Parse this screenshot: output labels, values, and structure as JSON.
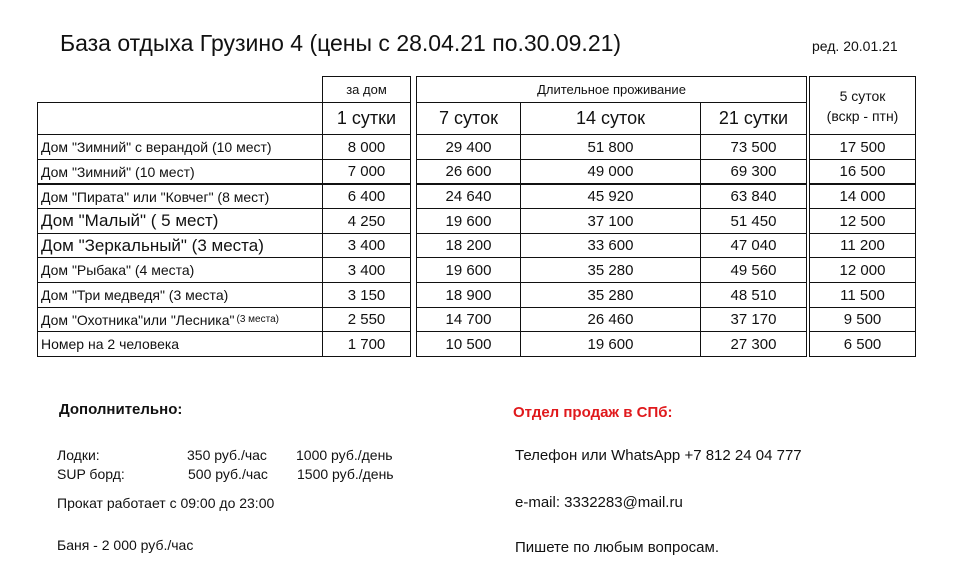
{
  "header": {
    "title": "База отдыха Грузино 4 (цены с 28.04.21 по.30.09.21)",
    "edition": "ред. 20.01.21"
  },
  "table": {
    "per_house_label": "за дом",
    "long_stay_label": "Длительное проживание",
    "columns": [
      "1 сутки",
      "7 суток",
      "14 суток",
      "21 сутки"
    ],
    "weekday_col": {
      "line1": "5 суток",
      "line2": "(вскр - птн)"
    },
    "rows": [
      {
        "name": "Дом \"Зимний\" с верандой (10 мест)",
        "note": "",
        "prices": [
          "8 000",
          "29 400",
          "51 800",
          "73 500",
          "17 500"
        ]
      },
      {
        "name": "Дом \"Зимний\" (10 мест)",
        "note": "",
        "prices": [
          "7 000",
          "26 600",
          "49 000",
          "69 300",
          "16 500"
        ]
      },
      {
        "name": "Дом \"Пирата\" или \"Ковчег\"  (8 мест)",
        "note": "",
        "prices": [
          "6 400",
          "24 640",
          "45 920",
          "63 840",
          "14 000"
        ]
      },
      {
        "name": "Дом \"Малый\" ( 5 мест)",
        "note": "",
        "prices": [
          "4 250",
          "19 600",
          "37 100",
          "51 450",
          "12 500"
        ]
      },
      {
        "name": "Дом \"Зеркальный\" (3 места)",
        "note": "",
        "prices": [
          "3 400",
          "18 200",
          "33 600",
          "47 040",
          "11 200"
        ]
      },
      {
        "name": "Дом \"Рыбака\" (4 места)",
        "note": "",
        "prices": [
          "3 400",
          "19 600",
          "35 280",
          "49 560",
          "12 000"
        ]
      },
      {
        "name": "Дом \"Три медведя\"  (3 места)",
        "note": "",
        "prices": [
          "3 150",
          "18 900",
          "35 280",
          "48 510",
          "11 500"
        ]
      },
      {
        "name": "Дом \"Охотника\"или \"Лесника\"",
        "note": "(3 места)",
        "prices": [
          "2 550",
          "14 700",
          "26 460",
          "37 170",
          "9 500"
        ]
      },
      {
        "name": "Номер на 2 человека",
        "note": "",
        "prices": [
          "1 700",
          "10 500",
          "19 600",
          "27 300",
          "6 500"
        ]
      }
    ]
  },
  "extras": {
    "heading": "Дополнительно:",
    "boats_label": "Лодки:",
    "boats_hour": "350 руб./час",
    "boats_day": "1000 руб./день",
    "sup_label": "SUP борд:",
    "sup_hour": "500 руб./час",
    "sup_day": "1500 руб./день",
    "rental_hours": "Прокат  работает с 09:00 до 23:00",
    "sauna": "Баня - 2 000 руб./час"
  },
  "sales": {
    "heading": "Отдел продаж в СПб:",
    "phone": "Телефон или WhatsApp +7 812 24 04 777",
    "email": "e-mail: 3332283@mail.ru",
    "note": "Пишете по любым вопросам."
  },
  "colors": {
    "accent_red": "#e0191c"
  }
}
